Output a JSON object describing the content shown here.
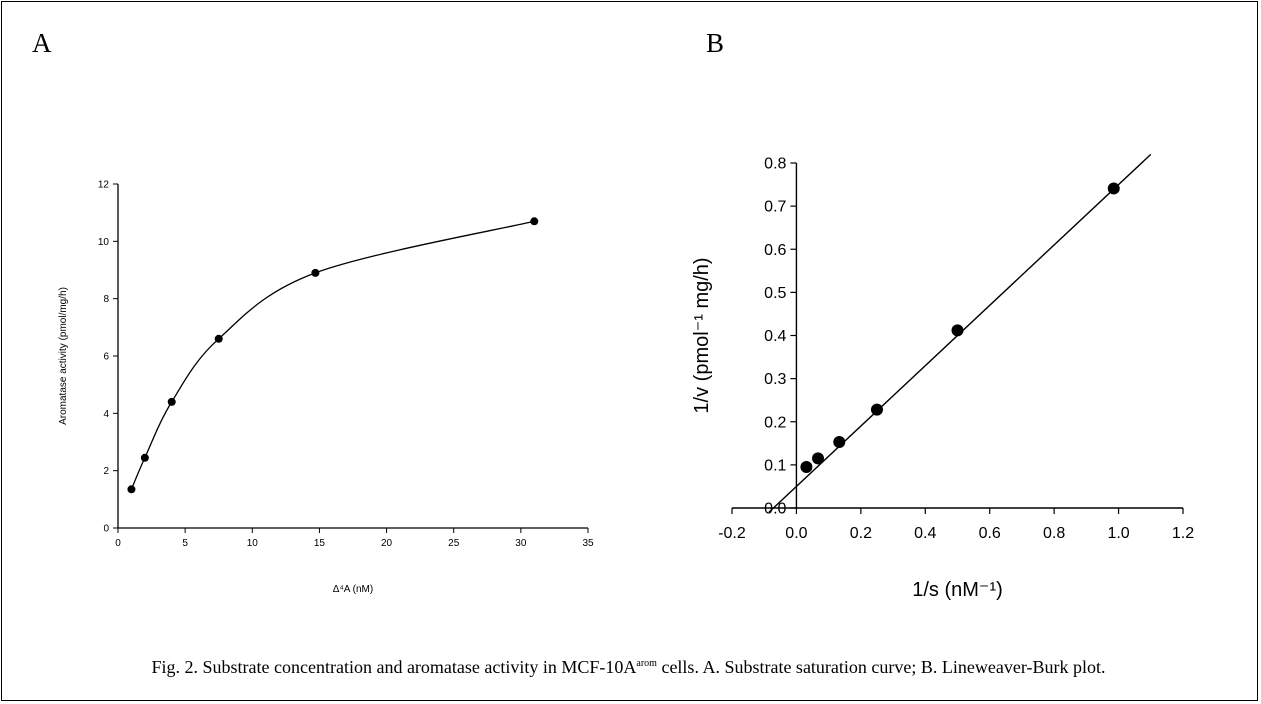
{
  "panel_labels": {
    "a": "A",
    "b": "B"
  },
  "caption": {
    "before_sup": "Fig. 2. Substrate concentration and aromatase activity in MCF-10A",
    "sup": "arom",
    "after_sup": " cells. A. Substrate saturation curve; B. Lineweaver-Burk plot."
  },
  "chart_data": [
    {
      "type": "scatter",
      "panel": "A",
      "line": "smooth",
      "xlabel": "Δ⁴A (nM)",
      "ylabel": "Aromatase activity (pmol/mg/h)",
      "xlim": [
        0,
        35
      ],
      "ylim": [
        0,
        12
      ],
      "xticks": [
        0,
        5,
        10,
        15,
        20,
        25,
        30,
        35
      ],
      "yticks": [
        0,
        2,
        4,
        6,
        8,
        10,
        12
      ],
      "grid": false,
      "points": [
        {
          "x": 1,
          "y": 1.35
        },
        {
          "x": 2,
          "y": 2.45
        },
        {
          "x": 4,
          "y": 4.4
        },
        {
          "x": 7.5,
          "y": 6.6
        },
        {
          "x": 14.7,
          "y": 8.9
        },
        {
          "x": 31,
          "y": 10.7
        }
      ]
    },
    {
      "type": "scatter",
      "panel": "B",
      "line": "linear fit",
      "xlabel": "1/s (nM⁻¹)",
      "ylabel": "1/v (pmol⁻¹ mg/h)",
      "xlim": [
        -0.2,
        1.2
      ],
      "ylim": [
        0,
        0.8
      ],
      "xticks": [
        "-0.2",
        "0.0",
        "0.2",
        "0.4",
        "0.6",
        "0.8",
        "1.0",
        "1.2"
      ],
      "yticks": [
        "0.0",
        "0.1",
        "0.2",
        "0.3",
        "0.4",
        "0.5",
        "0.6",
        "0.7",
        "0.8"
      ],
      "grid": false,
      "points": [
        {
          "x": 0.031,
          "y": 0.095
        },
        {
          "x": 0.067,
          "y": 0.115
        },
        {
          "x": 0.133,
          "y": 0.153
        },
        {
          "x": 0.25,
          "y": 0.228
        },
        {
          "x": 0.5,
          "y": 0.412
        },
        {
          "x": 0.985,
          "y": 0.741
        }
      ],
      "fit": {
        "slope": 0.7,
        "intercept": 0.05,
        "x_from": -0.085,
        "x_to": 1.1
      }
    }
  ]
}
